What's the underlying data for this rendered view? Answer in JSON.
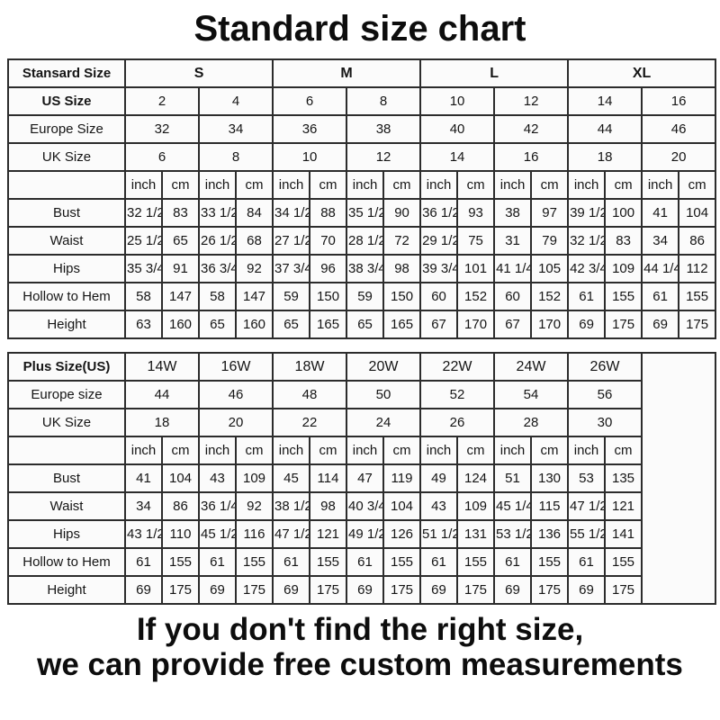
{
  "title": "Standard size chart",
  "footer": {
    "line1": "If you don't find the right size,",
    "line2": "we can provide free custom measurements"
  },
  "tables": [
    {
      "name": "standard-size-table",
      "rows": [
        {
          "label": "Stansard Size",
          "label_bold": true,
          "cell_bold": true,
          "span": 4,
          "cells": [
            "S",
            "M",
            "L",
            "XL"
          ]
        },
        {
          "label": "US Size",
          "label_bold": true,
          "span": 2,
          "cells": [
            "2",
            "4",
            "6",
            "8",
            "10",
            "12",
            "14",
            "16"
          ]
        },
        {
          "label": "Europe Size",
          "span": 2,
          "cells": [
            "32",
            "34",
            "36",
            "38",
            "40",
            "42",
            "44",
            "46"
          ]
        },
        {
          "label": "UK Size",
          "span": 2,
          "cells": [
            "6",
            "8",
            "10",
            "12",
            "14",
            "16",
            "18",
            "20"
          ]
        },
        {
          "label": "",
          "span": 1,
          "cells": [
            "inch",
            "cm",
            "inch",
            "cm",
            "inch",
            "cm",
            "inch",
            "cm",
            "inch",
            "cm",
            "inch",
            "cm",
            "inch",
            "cm",
            "inch",
            "cm"
          ]
        },
        {
          "label": "Bust",
          "span": 1,
          "cells": [
            "32 1/2",
            "83",
            "33 1/2",
            "84",
            "34 1/2",
            "88",
            "35 1/2",
            "90",
            "36 1/2",
            "93",
            "38",
            "97",
            "39 1/2",
            "100",
            "41",
            "104"
          ]
        },
        {
          "label": "Waist",
          "span": 1,
          "cells": [
            "25 1/2",
            "65",
            "26 1/2",
            "68",
            "27 1/2",
            "70",
            "28 1/2",
            "72",
            "29 1/2",
            "75",
            "31",
            "79",
            "32 1/2",
            "83",
            "34",
            "86"
          ]
        },
        {
          "label": "Hips",
          "span": 1,
          "cells": [
            "35 3/4",
            "91",
            "36 3/4",
            "92",
            "37 3/4",
            "96",
            "38 3/4",
            "98",
            "39 3/4",
            "101",
            "41 1/4",
            "105",
            "42 3/4",
            "109",
            "44 1/4",
            "112"
          ]
        },
        {
          "label": "Hollow to Hem",
          "span": 1,
          "cells": [
            "58",
            "147",
            "58",
            "147",
            "59",
            "150",
            "59",
            "150",
            "60",
            "152",
            "60",
            "152",
            "61",
            "155",
            "61",
            "155"
          ]
        },
        {
          "label": "Height",
          "span": 1,
          "cells": [
            "63",
            "160",
            "65",
            "160",
            "65",
            "165",
            "65",
            "165",
            "67",
            "170",
            "67",
            "170",
            "69",
            "175",
            "69",
            "175"
          ]
        }
      ]
    },
    {
      "name": "plus-size-table",
      "rows": [
        {
          "label": "Plus Size(US)",
          "label_bold": true,
          "span": 2,
          "cells": [
            "14W",
            "16W",
            "18W",
            "20W",
            "22W",
            "24W",
            "26W"
          ]
        },
        {
          "label": "Europe size",
          "span": 2,
          "cells": [
            "44",
            "46",
            "48",
            "50",
            "52",
            "54",
            "56"
          ]
        },
        {
          "label": "UK Size",
          "span": 2,
          "cells": [
            "18",
            "20",
            "22",
            "24",
            "26",
            "28",
            "30"
          ]
        },
        {
          "label": "",
          "span": 1,
          "cells": [
            "inch",
            "cm",
            "inch",
            "cm",
            "inch",
            "cm",
            "inch",
            "cm",
            "inch",
            "cm",
            "inch",
            "cm",
            "inch",
            "cm"
          ]
        },
        {
          "label": "Bust",
          "span": 1,
          "cells": [
            "41",
            "104",
            "43",
            "109",
            "45",
            "114",
            "47",
            "119",
            "49",
            "124",
            "51",
            "130",
            "53",
            "135"
          ]
        },
        {
          "label": "Waist",
          "span": 1,
          "cells": [
            "34",
            "86",
            "36 1/4",
            "92",
            "38 1/2",
            "98",
            "40 3/4",
            "104",
            "43",
            "109",
            "45 1/4",
            "115",
            "47 1/2",
            "121"
          ]
        },
        {
          "label": "Hips",
          "span": 1,
          "cells": [
            "43 1/2",
            "110",
            "45 1/2",
            "116",
            "47 1/2",
            "121",
            "49 1/2",
            "126",
            "51 1/2",
            "131",
            "53 1/2",
            "136",
            "55 1/2",
            "141"
          ]
        },
        {
          "label": "Hollow to Hem",
          "span": 1,
          "cells": [
            "61",
            "155",
            "61",
            "155",
            "61",
            "155",
            "61",
            "155",
            "61",
            "155",
            "61",
            "155",
            "61",
            "155"
          ]
        },
        {
          "label": "Height",
          "span": 1,
          "cells": [
            "69",
            "175",
            "69",
            "175",
            "69",
            "175",
            "69",
            "175",
            "69",
            "175",
            "69",
            "175",
            "69",
            "175"
          ]
        }
      ]
    }
  ]
}
